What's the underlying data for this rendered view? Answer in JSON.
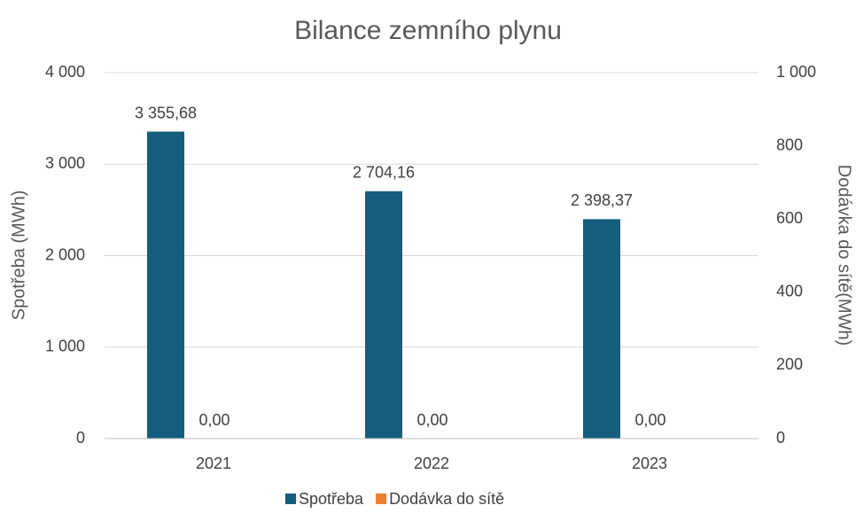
{
  "chart_data": {
    "type": "bar",
    "title": "Bilance zemního plynu",
    "categories": [
      "2021",
      "2022",
      "2023"
    ],
    "series": [
      {
        "name": "Spotřeba",
        "color": "#165e7e",
        "values": [
          3355.68,
          2704.16,
          2398.37
        ],
        "value_labels": [
          "3 355,68",
          "2 704,16",
          "2 398,37"
        ]
      },
      {
        "name": "Dodávka do sítě",
        "color": "#ed7d31",
        "axis": "y2",
        "values": [
          0,
          0,
          0
        ],
        "value_labels": [
          "0,00",
          "0,00",
          "0,00"
        ]
      }
    ],
    "y_label": "Spotřeba (MWh)",
    "y2_label": "Dodávka do sítě(MWh)",
    "ylim": [
      0,
      4000
    ],
    "yticks": [
      0,
      {
        "value": 1000,
        "label": "1 000"
      },
      {
        "value": 2000,
        "label": "2 000"
      },
      {
        "value": 3000,
        "label": "3 000"
      },
      {
        "value": 4000,
        "label": "4 000"
      }
    ],
    "y2lim": [
      0,
      1000
    ],
    "y2ticks": [
      0,
      200,
      400,
      600,
      800,
      {
        "value": 1000,
        "label": "1 000"
      }
    ],
    "grid": true,
    "legend": "bottom"
  }
}
